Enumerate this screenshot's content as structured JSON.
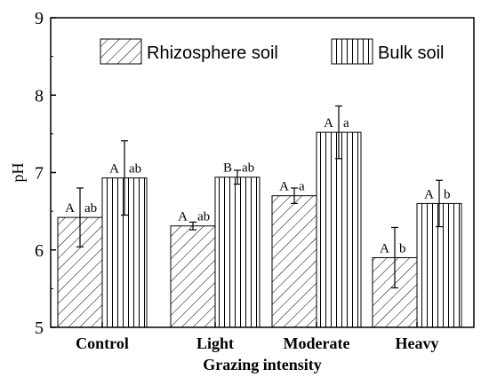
{
  "chart_data": {
    "type": "bar",
    "title": "",
    "xlabel": "Grazing intensity",
    "ylabel": "pH",
    "ylim": [
      5,
      9
    ],
    "yticks": [
      5,
      6,
      7,
      8,
      9
    ],
    "categories": [
      "Control",
      "Light",
      "Moderate",
      "Heavy"
    ],
    "legend_position": "top",
    "series": [
      {
        "name": "Rhizosphere soil",
        "pattern": "diagonal-hatch",
        "values": [
          6.42,
          6.31,
          6.7,
          5.9
        ],
        "errors": [
          0.38,
          0.05,
          0.1,
          0.39
        ],
        "labels": [
          "A  ab",
          "A  ab",
          "A  a",
          "A  b"
        ]
      },
      {
        "name": "Bulk soil",
        "pattern": "vertical-hatch",
        "values": [
          6.93,
          6.94,
          7.52,
          6.6
        ],
        "errors": [
          0.48,
          0.09,
          0.34,
          0.3
        ],
        "labels": [
          "A  ab",
          "B  ab",
          "A  a",
          "A  b"
        ]
      }
    ],
    "grid": false
  }
}
